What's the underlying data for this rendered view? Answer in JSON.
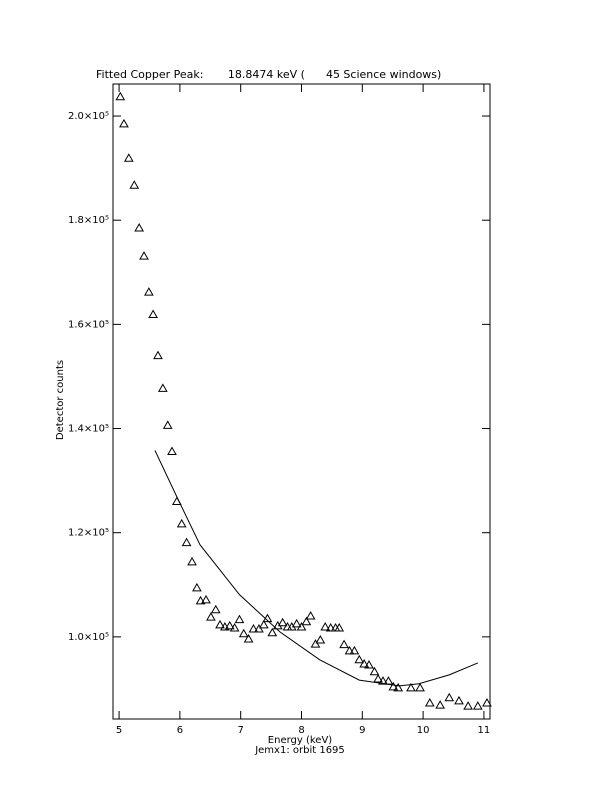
{
  "chart_data": {
    "type": "scatter",
    "title": "Fitted Copper Peak:       18.8474 keV (      45 Science windows)",
    "x_label": "Energy (keV)",
    "subtitle": "Jemx1: orbit 1695",
    "y_label": "Detector counts",
    "xlim": [
      4.9,
      11.1
    ],
    "ylim": [
      84230,
      206150
    ],
    "xticks": [
      5,
      6,
      7,
      8,
      9,
      10,
      11
    ],
    "yticks": [
      {
        "value": 100000,
        "label": "1.0×10⁵"
      },
      {
        "value": 120000,
        "label": "1.2×10⁵"
      },
      {
        "value": 140000,
        "label": "1.4×10⁵"
      },
      {
        "value": 160000,
        "label": "1.6×10⁵"
      },
      {
        "value": 180000,
        "label": "1.8×10⁵"
      },
      {
        "value": 200000,
        "label": "2.0×10⁵"
      }
    ],
    "series": [
      {
        "type": "scatter",
        "marker": "triangle",
        "color": "#000000",
        "x": [
          5.02,
          5.08,
          5.16,
          5.25,
          5.33,
          5.41,
          5.49,
          5.56,
          5.64,
          5.72,
          5.8,
          5.87,
          5.95,
          6.03,
          6.11,
          6.2,
          6.28,
          6.34,
          6.43,
          6.51,
          6.59,
          6.66,
          6.74,
          6.82,
          6.9,
          6.98,
          7.05,
          7.13,
          7.21,
          7.3,
          7.38,
          7.44,
          7.52,
          7.61,
          7.69,
          7.77,
          7.84,
          7.92,
          8.0,
          8.08,
          8.15,
          8.23,
          8.31,
          8.39,
          8.48,
          8.56,
          8.62,
          8.7,
          8.79,
          8.87,
          8.95,
          9.03,
          9.11,
          9.2,
          9.26,
          9.34,
          9.43,
          9.51,
          9.59,
          9.8,
          9.95,
          10.11,
          10.28,
          10.43,
          10.59,
          10.74,
          10.9,
          11.05
        ],
        "values": [
          203700,
          198500,
          191900,
          186700,
          178500,
          173100,
          166200,
          161900,
          154000,
          147700,
          140600,
          135600,
          126000,
          121700,
          118100,
          114400,
          109400,
          106900,
          107100,
          103800,
          105200,
          102300,
          101900,
          102100,
          101700,
          103300,
          100600,
          99600,
          101500,
          101500,
          102300,
          103500,
          100800,
          102100,
          102700,
          101900,
          101900,
          102500,
          101900,
          102900,
          104000,
          98600,
          99400,
          101900,
          101700,
          101700,
          101700,
          98500,
          97300,
          97300,
          95600,
          94800,
          94600,
          93300,
          91900,
          91500,
          91500,
          90400,
          90200,
          90200,
          90200,
          87300,
          86900,
          88300,
          87700,
          86700,
          86700,
          87300
        ]
      },
      {
        "type": "line",
        "color": "#000000",
        "x": [
          5.59,
          5.97,
          6.33,
          6.98,
          7.64,
          8.3,
          8.95,
          9.61,
          9.93,
          10.43,
          10.9
        ],
        "values": [
          135800,
          126400,
          117700,
          108100,
          101000,
          95600,
          91700,
          90600,
          91000,
          92700,
          95000
        ]
      }
    ]
  }
}
